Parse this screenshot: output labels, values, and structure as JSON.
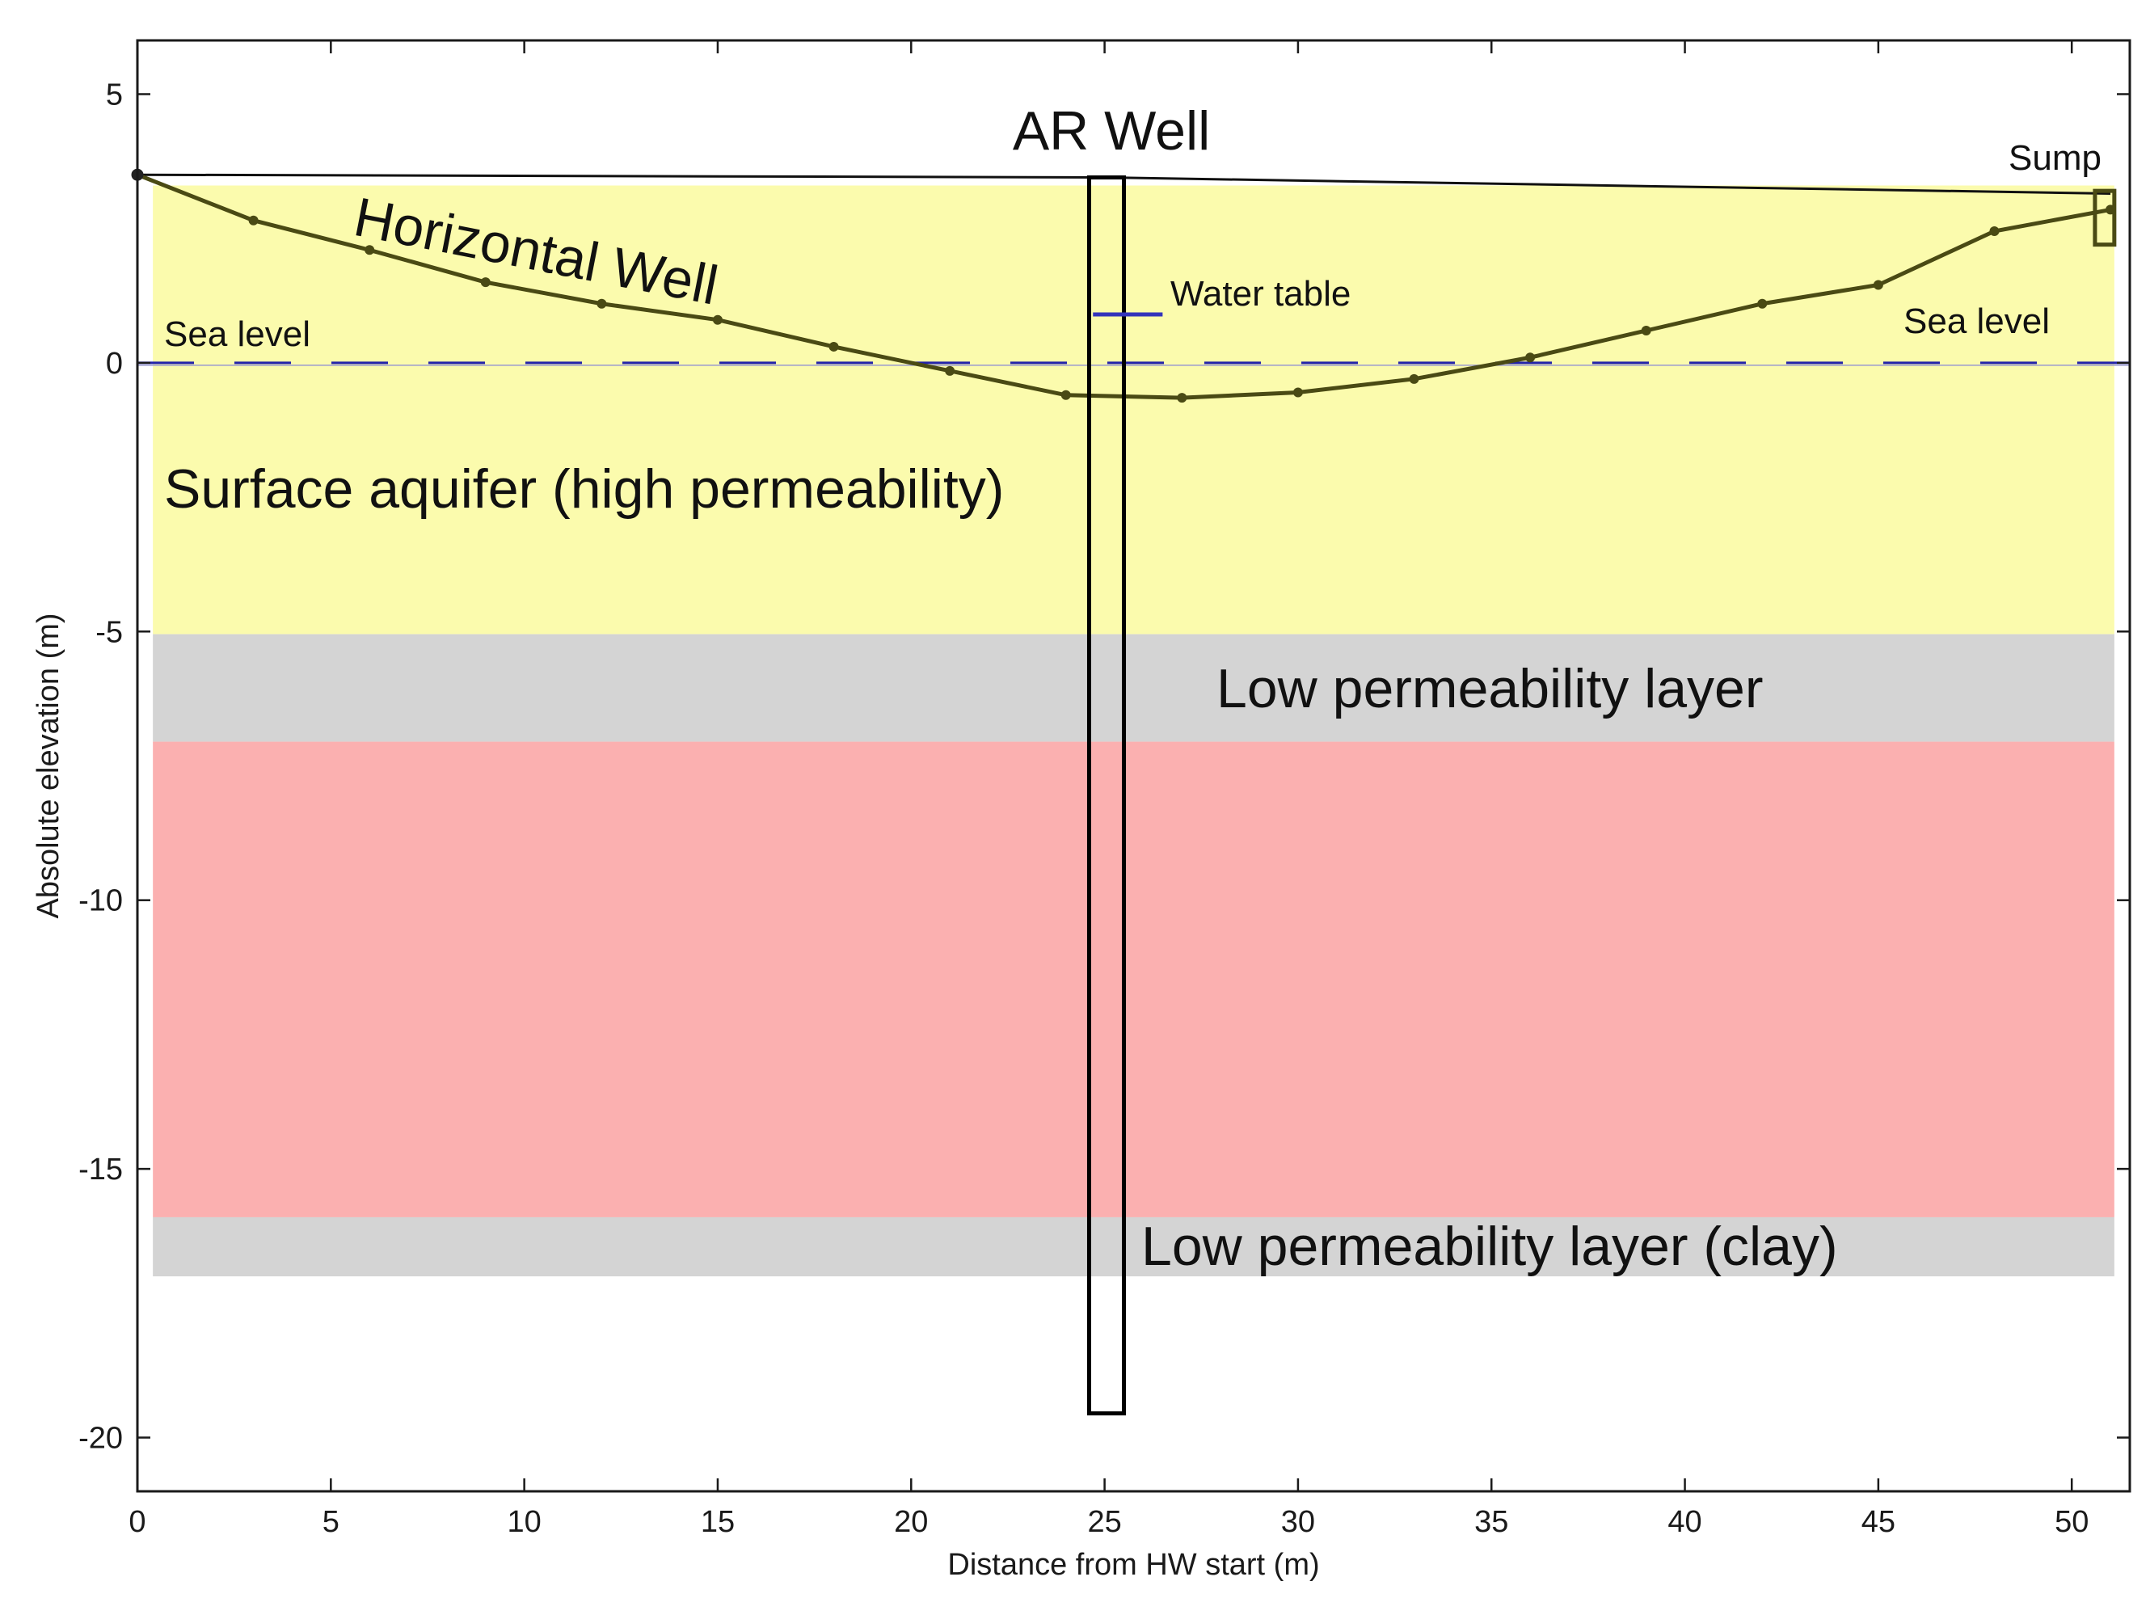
{
  "chart_data": {
    "type": "line",
    "title": "",
    "xlabel": "Distance from HW start (m)",
    "ylabel": "Absolute elevation (m)",
    "xlim": [
      0,
      51.5
    ],
    "ylim": [
      -21,
      6
    ],
    "xticks": [
      0,
      5,
      10,
      15,
      20,
      25,
      30,
      35,
      40,
      45,
      50
    ],
    "yticks": [
      5,
      0,
      -5,
      -10,
      -15,
      -20
    ],
    "grid": false,
    "colors": {
      "horizontal_well": "#4a4a14",
      "surface_aquifer": "#fbfbad",
      "low_perm": "#d4d4d4",
      "middle_layer": "#fbb0b0",
      "sea_level": "#2222aa",
      "water_table": "#3333bb",
      "ground_surface": "#111111",
      "ar_well": "#000000",
      "sump_label": "#6b6b1a"
    },
    "layers": [
      {
        "name": "Surface aquifer (high permeability)",
        "x_range": [
          0.4,
          51.1
        ],
        "top": 3.3,
        "bottom": -5.05,
        "color_key": "surface_aquifer"
      },
      {
        "name": "Low permeability layer",
        "x_range": [
          0.4,
          51.1
        ],
        "top": -5.05,
        "bottom": -7.05,
        "color_key": "low_perm"
      },
      {
        "name": "",
        "x_range": [
          0.4,
          51.1
        ],
        "top": -7.05,
        "bottom": -15.9,
        "color_key": "middle_layer"
      },
      {
        "name": "Low permeability layer (clay)",
        "x_range": [
          0.4,
          51.1
        ],
        "top": -15.9,
        "bottom": -17.0,
        "color_key": "low_perm"
      }
    ],
    "series": [
      {
        "name": "Horizontal Well",
        "x": [
          0,
          3,
          6,
          9,
          12,
          15,
          18,
          21,
          24,
          27,
          30,
          33,
          36,
          39,
          42,
          45,
          48,
          51
        ],
        "y": [
          3.5,
          2.65,
          2.1,
          1.5,
          1.1,
          0.8,
          0.3,
          -0.15,
          -0.6,
          -0.65,
          -0.55,
          -0.3,
          0.1,
          0.6,
          1.1,
          1.45,
          2.45,
          2.85
        ]
      }
    ],
    "ground_surface": {
      "x": [
        0,
        25,
        51
      ],
      "y": [
        3.5,
        3.45,
        3.15
      ]
    },
    "sea_level": 0,
    "water_table": {
      "x_range": [
        24.7,
        26.5
      ],
      "y": 0.9
    },
    "ar_well": {
      "x_range": [
        24.6,
        25.5
      ],
      "top": 3.45,
      "bottom": -19.55
    },
    "sump": {
      "x_range": [
        50.6,
        51.1
      ],
      "top": 3.2,
      "bottom": 2.2
    },
    "annotations": {
      "ar_well": "AR Well",
      "horizontal_well": "Horizontal Well",
      "sea_level_left": "Sea level",
      "sea_level_right": "Sea level",
      "water_table": "Water table",
      "sump": "Sump",
      "surface_aquifer": "Surface aquifer (high permeability)",
      "low_perm": "Low permeability layer",
      "low_perm_clay": "Low permeability layer (clay)"
    }
  }
}
